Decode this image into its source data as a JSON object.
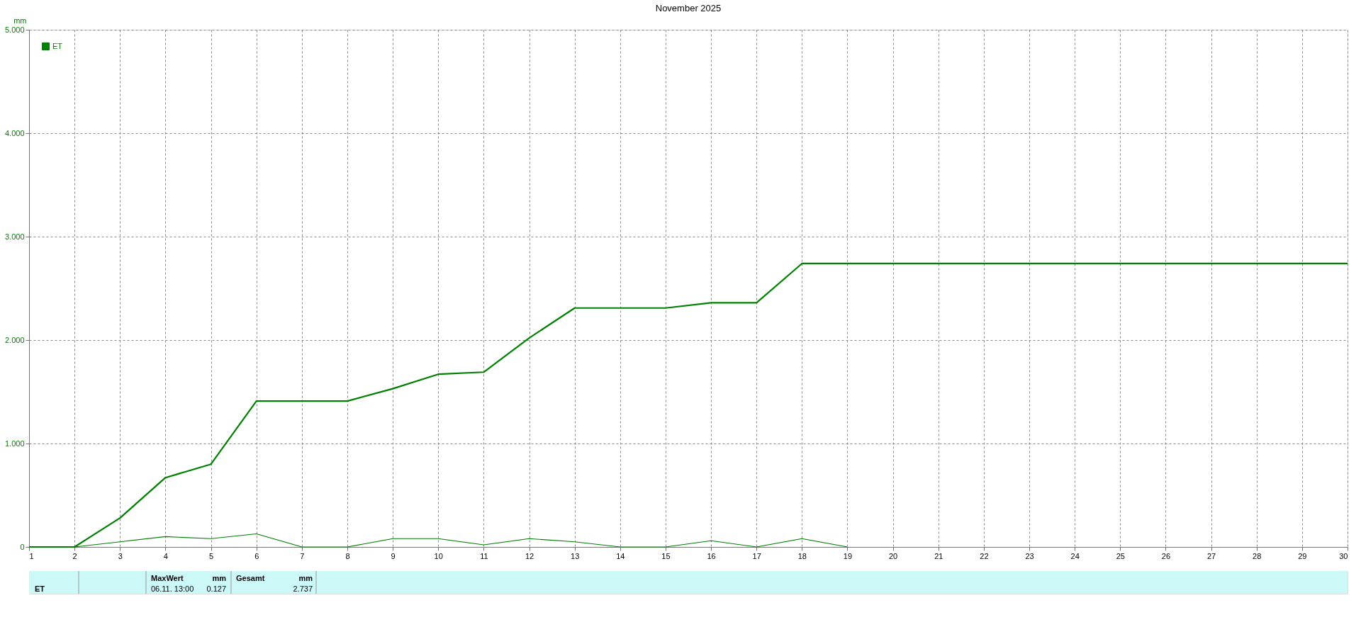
{
  "chart_data": {
    "type": "line",
    "title": "November 2025",
    "ylabel": "mm",
    "x": [
      1,
      2,
      3,
      4,
      5,
      6,
      7,
      8,
      9,
      10,
      11,
      12,
      13,
      14,
      15,
      16,
      17,
      18,
      19,
      20,
      21,
      22,
      23,
      24,
      25,
      26,
      27,
      28,
      29,
      30
    ],
    "series": [
      {
        "name": "ET",
        "color": "#008000",
        "values": [
          0,
          0,
          0.28,
          0.67,
          0.8,
          1.41,
          1.41,
          1.41,
          1.53,
          1.67,
          1.69,
          2.02,
          2.31,
          2.31,
          2.31,
          2.36,
          2.36,
          2.74,
          2.74,
          2.74,
          2.74,
          2.74,
          2.74,
          2.74,
          2.74,
          2.74,
          2.74,
          2.74,
          2.74,
          2.74
        ]
      },
      {
        "color": "#008000",
        "x": [
          1,
          2,
          3,
          4,
          5,
          6,
          7,
          8,
          9,
          10,
          11,
          12,
          13,
          14,
          15,
          16,
          17,
          18,
          19
        ],
        "values": [
          0,
          0,
          0.05,
          0.1,
          0.08,
          0.127,
          0,
          0,
          0.08,
          0.08,
          0.02,
          0.08,
          0.05,
          0,
          0,
          0.06,
          0,
          0.08,
          0
        ]
      }
    ],
    "xlim": [
      1,
      30
    ],
    "xticks": [
      1,
      2,
      3,
      4,
      5,
      6,
      7,
      8,
      9,
      10,
      11,
      12,
      13,
      14,
      15,
      16,
      17,
      18,
      19,
      20,
      21,
      22,
      23,
      24,
      25,
      26,
      27,
      28,
      29,
      30
    ],
    "ylim": [
      0,
      5
    ],
    "yticks": [
      0,
      {
        "value": 1,
        "label": "1.000"
      },
      {
        "value": 2,
        "label": "2.000"
      },
      {
        "value": 3,
        "label": "3.000"
      },
      {
        "value": 4,
        "label": "4.000"
      },
      {
        "value": 5,
        "label": "5.000"
      }
    ],
    "grid": true,
    "legend": "top left",
    "line_style": "solid",
    "annotations": [
      "ET",
      "MaxWert",
      "mm",
      "06.11. 13:00",
      "0.127",
      "Gesamt",
      "mm",
      "2.737"
    ]
  }
}
